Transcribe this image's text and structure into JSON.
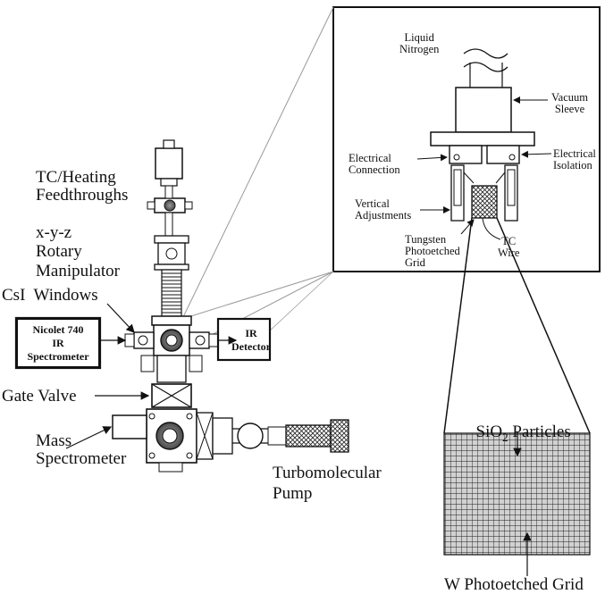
{
  "labels": {
    "tc_heating": "TC/Heating\nFeedthroughs",
    "xyz": "x-y-z\nRotary\nManipulator",
    "csi": "CsI  Windows",
    "nicolet": "Nicolet 740\nIR\nSpectrometer",
    "ir_detector": "IR\nDetector",
    "gate_valve": "Gate Valve",
    "mass_spec": "Mass\nSpectrometer",
    "turbo": "Turbomolecular\nPump",
    "liquid_nitrogen": "Liquid\nNitrogen",
    "vacuum_sleeve": "Vacuum\nSleeve",
    "electrical_connection": "Electrical\nConnection",
    "electrical_isolation": "Electrical\nIsolation",
    "vertical_adjustments": "Vertical\nAdjustments",
    "tungsten_grid": "Tungsten\nPhotoetched\nGrid",
    "tc_wire": "TC\nWire",
    "sio2_prefix": "SiO",
    "sio2_sub": "2",
    "sio2_suffix": " Particles",
    "w_grid": "W Photoetched Grid"
  }
}
